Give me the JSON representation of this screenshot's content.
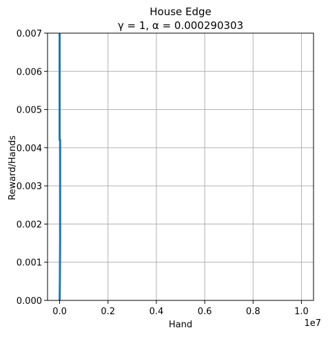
{
  "chart_data": {
    "type": "line",
    "title": "House Edge",
    "subtitle": "γ = 1, α = 0.000290303",
    "xlabel": "Hand",
    "ylabel": "Reward/Hands",
    "x_offset_label": "1e7",
    "xlim": [
      -0.05,
      1.05
    ],
    "ylim": [
      0,
      0.007
    ],
    "x_ticks": [
      0.0,
      0.2,
      0.4,
      0.6,
      0.8,
      1.0
    ],
    "x_tick_labels": [
      "0.0",
      "0.2",
      "0.4",
      "0.6",
      "0.8",
      "1.0"
    ],
    "y_ticks": [
      0,
      0.001,
      0.002,
      0.003,
      0.004,
      0.005,
      0.006,
      0.007
    ],
    "y_tick_labels": [
      "0.000",
      "0.001",
      "0.002",
      "0.003",
      "0.004",
      "0.005",
      "0.006",
      "0.007"
    ],
    "grid": true,
    "series": [
      {
        "color": "#1f77b4",
        "x": [
          0.0,
          0.0,
          0.002,
          0.002,
          0.001,
          0.0
        ],
        "y": [
          0.007,
          0.0042,
          0.0042,
          0.0016,
          0.0005,
          0.0
        ]
      }
    ]
  }
}
